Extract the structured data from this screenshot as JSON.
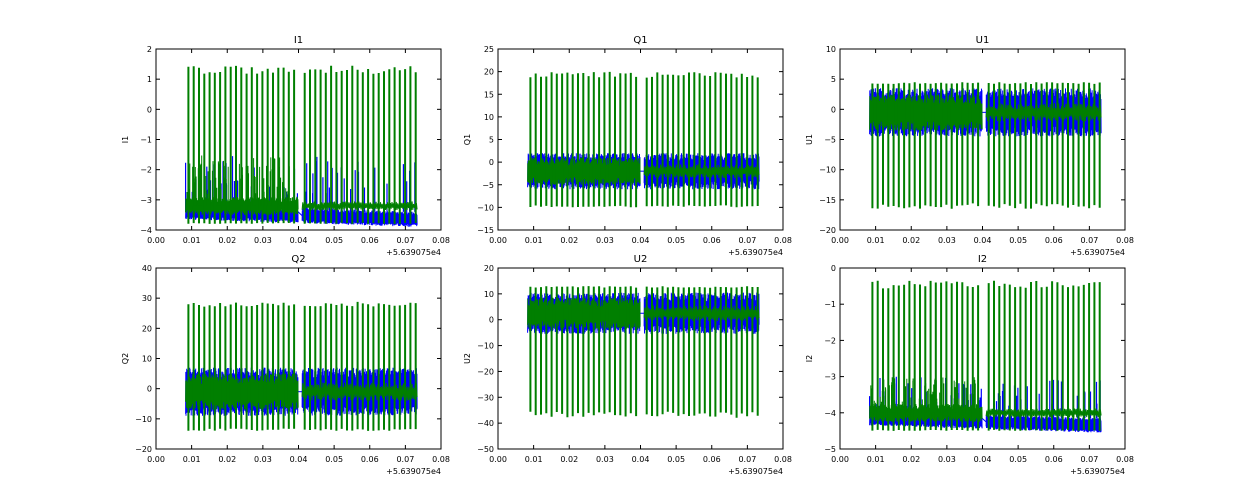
{
  "figure": {
    "background": "#ffffff"
  },
  "chart_data": [
    {
      "type": "line",
      "title": "I1",
      "ylabel": "I1",
      "xlabel": "",
      "x_offset_label": "+5.639075e4",
      "xlim": [
        0.0,
        0.08
      ],
      "ylim": [
        -4,
        2
      ],
      "x_ticks": [
        0.0,
        0.01,
        0.02,
        0.03,
        0.04,
        0.05,
        0.06,
        0.07,
        0.08
      ],
      "x_tick_labels": [
        "0.00",
        "0.01",
        "0.02",
        "0.03",
        "0.04",
        "0.05",
        "0.06",
        "0.07",
        "0.08"
      ],
      "y_ticks": [
        -4,
        -3,
        -2,
        -1,
        0,
        1,
        2
      ],
      "y_tick_labels": [
        "−4",
        "−3",
        "−2",
        "−1",
        "0",
        "1",
        "2"
      ],
      "segments": [
        [
          0.0083,
          0.0399
        ],
        [
          0.041,
          0.0733
        ]
      ],
      "series": [
        {
          "name": "blue",
          "color": "#0000ff",
          "center": -3.4,
          "amplitude": 0.25,
          "drift_end": -3.65,
          "spike_top": -1.5,
          "spike_bottom": -3.7
        },
        {
          "name": "green",
          "color": "#007f00",
          "center": -3.2,
          "amplitude": 0.3,
          "spike_top": 1.45,
          "spike_bottom": -3.8,
          "spike_count": 44
        }
      ]
    },
    {
      "type": "line",
      "title": "Q1",
      "ylabel": "Q1",
      "xlabel": "",
      "x_offset_label": "+5.639075e4",
      "xlim": [
        0.0,
        0.08
      ],
      "ylim": [
        -15,
        25
      ],
      "x_ticks": [
        0.0,
        0.01,
        0.02,
        0.03,
        0.04,
        0.05,
        0.06,
        0.07,
        0.08
      ],
      "x_tick_labels": [
        "0.00",
        "0.01",
        "0.02",
        "0.03",
        "0.04",
        "0.05",
        "0.06",
        "0.07",
        "0.08"
      ],
      "y_ticks": [
        -15,
        -10,
        -5,
        0,
        5,
        10,
        15,
        20,
        25
      ],
      "y_tick_labels": [
        "−15",
        "−10",
        "−5",
        "0",
        "5",
        "10",
        "15",
        "20",
        "25"
      ],
      "segments": [
        [
          0.0083,
          0.0399
        ],
        [
          0.041,
          0.0733
        ]
      ],
      "series": [
        {
          "name": "blue",
          "color": "#0000ff",
          "center": -2,
          "amplitude": 4,
          "drift_end": -2
        },
        {
          "name": "green",
          "color": "#007f00",
          "center": -2,
          "amplitude": 3,
          "spike_top": 20,
          "spike_bottom": -10,
          "spike_count": 44
        }
      ]
    },
    {
      "type": "line",
      "title": "U1",
      "ylabel": "U1",
      "xlabel": "",
      "x_offset_label": "+5.639075e4",
      "xlim": [
        0.0,
        0.08
      ],
      "ylim": [
        -20,
        10
      ],
      "x_ticks": [
        0.0,
        0.01,
        0.02,
        0.03,
        0.04,
        0.05,
        0.06,
        0.07,
        0.08
      ],
      "x_tick_labels": [
        "0.00",
        "0.01",
        "0.02",
        "0.03",
        "0.04",
        "0.05",
        "0.06",
        "0.07",
        "0.08"
      ],
      "y_ticks": [
        -20,
        -15,
        -10,
        -5,
        0,
        5,
        10
      ],
      "y_tick_labels": [
        "−20",
        "−15",
        "−10",
        "−5",
        "0",
        "5",
        "10"
      ],
      "segments": [
        [
          0.0083,
          0.0399
        ],
        [
          0.041,
          0.0733
        ]
      ],
      "series": [
        {
          "name": "blue",
          "color": "#0000ff",
          "center": -0.5,
          "amplitude": 4,
          "drift_end": -0.5
        },
        {
          "name": "green",
          "color": "#007f00",
          "center": -0.5,
          "amplitude": 3,
          "spike_top": 4.5,
          "spike_bottom": -16.5,
          "spike_count": 44
        }
      ]
    },
    {
      "type": "line",
      "title": "Q2",
      "ylabel": "Q2",
      "xlabel": "",
      "x_offset_label": "+5.639075e4",
      "xlim": [
        0.0,
        0.08
      ],
      "ylim": [
        -20,
        40
      ],
      "x_ticks": [
        0.0,
        0.01,
        0.02,
        0.03,
        0.04,
        0.05,
        0.06,
        0.07,
        0.08
      ],
      "x_tick_labels": [
        "0.00",
        "0.01",
        "0.02",
        "0.03",
        "0.04",
        "0.05",
        "0.06",
        "0.07",
        "0.08"
      ],
      "y_ticks": [
        -20,
        -10,
        0,
        10,
        20,
        30,
        40
      ],
      "y_tick_labels": [
        "−20",
        "−10",
        "0",
        "10",
        "20",
        "30",
        "40"
      ],
      "segments": [
        [
          0.0083,
          0.0399
        ],
        [
          0.041,
          0.0733
        ]
      ],
      "series": [
        {
          "name": "blue",
          "color": "#0000ff",
          "center": -1,
          "amplitude": 8,
          "drift_end": -1
        },
        {
          "name": "green",
          "color": "#007f00",
          "center": -1,
          "amplitude": 6,
          "spike_top": 29,
          "spike_bottom": -14,
          "spike_count": 44
        }
      ]
    },
    {
      "type": "line",
      "title": "U2",
      "ylabel": "U2",
      "xlabel": "",
      "x_offset_label": "+5.639075e4",
      "xlim": [
        0.0,
        0.08
      ],
      "ylim": [
        -50,
        20
      ],
      "x_ticks": [
        0.0,
        0.01,
        0.02,
        0.03,
        0.04,
        0.05,
        0.06,
        0.07,
        0.08
      ],
      "x_tick_labels": [
        "0.00",
        "0.01",
        "0.02",
        "0.03",
        "0.04",
        "0.05",
        "0.06",
        "0.07",
        "0.08"
      ],
      "y_ticks": [
        -50,
        -40,
        -30,
        -20,
        -10,
        0,
        10,
        20
      ],
      "y_tick_labels": [
        "−50",
        "−40",
        "−30",
        "−20",
        "−10",
        "0",
        "10",
        "20"
      ],
      "segments": [
        [
          0.0083,
          0.0399
        ],
        [
          0.041,
          0.0733
        ]
      ],
      "series": [
        {
          "name": "blue",
          "color": "#0000ff",
          "center": 2.5,
          "amplitude": 8,
          "drift_end": 2.5
        },
        {
          "name": "green",
          "color": "#007f00",
          "center": 2.5,
          "amplitude": 6,
          "spike_top": 13,
          "spike_bottom": -38,
          "spike_count": 44
        }
      ]
    },
    {
      "type": "line",
      "title": "I2",
      "ylabel": "I2",
      "xlabel": "",
      "x_offset_label": "+5.639075e4",
      "xlim": [
        0.0,
        0.08
      ],
      "ylim": [
        -5,
        0
      ],
      "x_ticks": [
        0.0,
        0.01,
        0.02,
        0.03,
        0.04,
        0.05,
        0.06,
        0.07,
        0.08
      ],
      "x_tick_labels": [
        "0.00",
        "0.01",
        "0.02",
        "0.03",
        "0.04",
        "0.05",
        "0.06",
        "0.07",
        "0.08"
      ],
      "y_ticks": [
        -5,
        -4,
        -3,
        -2,
        -1,
        0
      ],
      "y_tick_labels": [
        "−5",
        "−4",
        "−3",
        "−2",
        "−1",
        "0"
      ],
      "segments": [
        [
          0.0083,
          0.0399
        ],
        [
          0.041,
          0.0733
        ]
      ],
      "series": [
        {
          "name": "blue",
          "color": "#0000ff",
          "center": -4.15,
          "amplitude": 0.2,
          "drift_end": -4.35,
          "spike_top": -3.0,
          "spike_bottom": -4.45
        },
        {
          "name": "green",
          "color": "#007f00",
          "center": -4.0,
          "amplitude": 0.25,
          "spike_top": -0.35,
          "spike_bottom": -4.5,
          "spike_count": 44
        }
      ]
    }
  ]
}
